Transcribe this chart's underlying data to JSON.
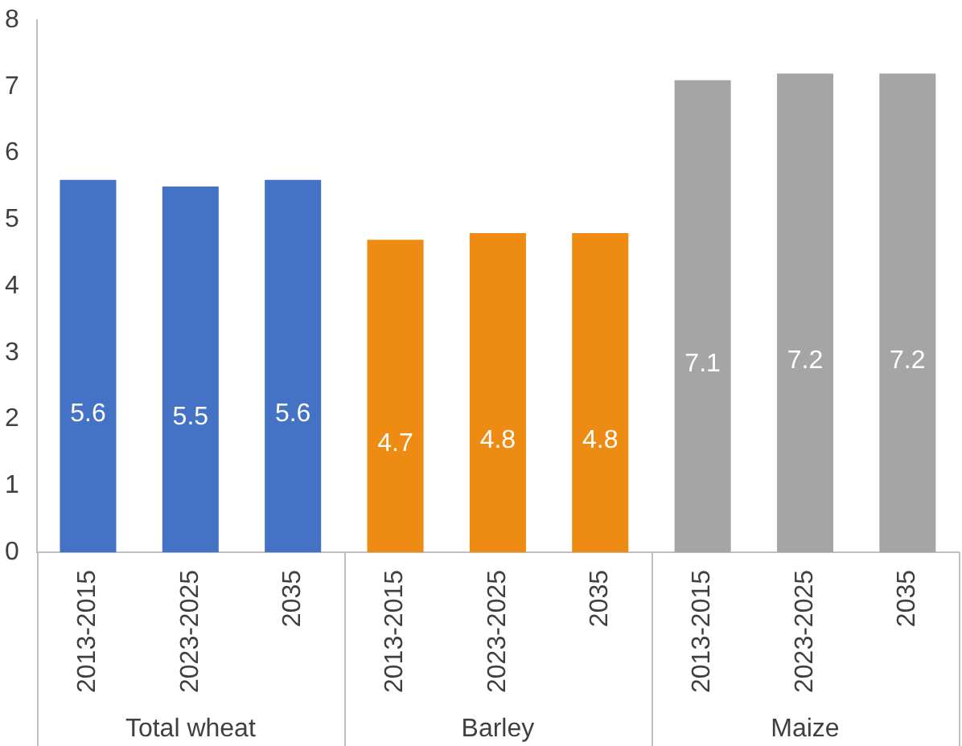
{
  "chart_data": {
    "type": "bar",
    "categories": [
      "2013-2015",
      "2023-2025",
      "2035",
      "2013-2015",
      "2023-2025",
      "2035",
      "2013-2015",
      "2023-2025",
      "2035"
    ],
    "series": [
      {
        "color": "#4472c4",
        "values": [
          5.6,
          5.5,
          5.6,
          null,
          null,
          null,
          null,
          null,
          null
        ]
      },
      {
        "color": "#ed8b13",
        "values": [
          null,
          null,
          null,
          4.7,
          4.8,
          4.8,
          null,
          null,
          null
        ]
      },
      {
        "color": "#a5a5a5",
        "values": [
          null,
          null,
          null,
          null,
          null,
          null,
          7.1,
          7.2,
          7.2
        ]
      }
    ],
    "annotations": [
      "Total wheat",
      "Barley",
      "Maize"
    ],
    "ylim": [
      0,
      8
    ],
    "yticks": [
      0,
      1,
      2,
      3,
      4,
      5,
      6,
      7,
      8
    ],
    "grid": false,
    "legend": false,
    "data_labels": true
  }
}
